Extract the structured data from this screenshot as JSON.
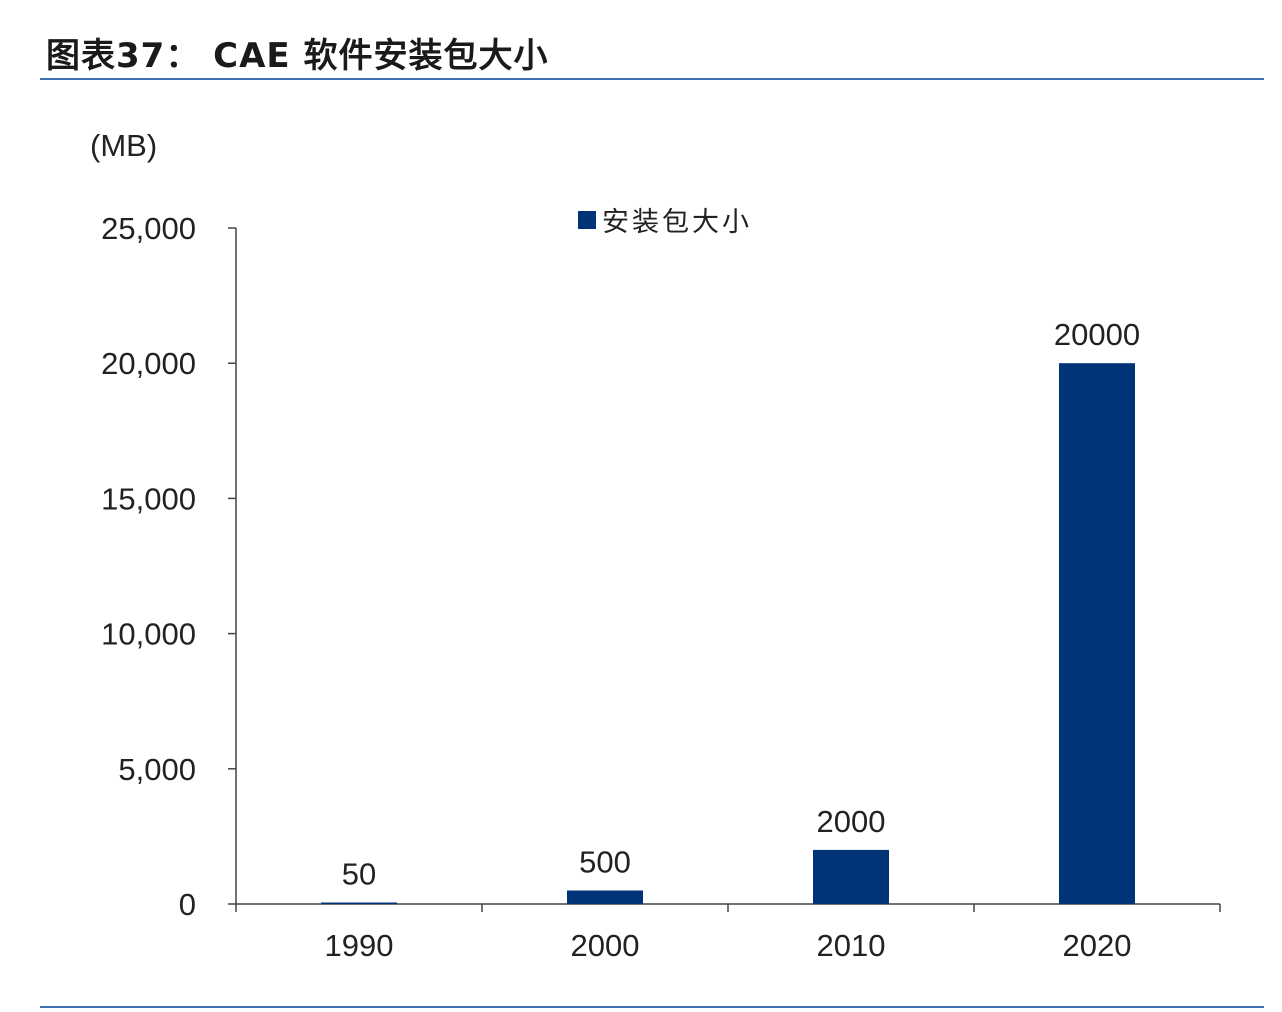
{
  "figure": {
    "title": "图表37：  CAE 软件安装包大小"
  },
  "chart_data": {
    "type": "bar",
    "ylabel": "(MB)",
    "categories": [
      "1990",
      "2000",
      "2010",
      "2020"
    ],
    "series": [
      {
        "name": "安装包大小",
        "values": [
          50,
          500,
          2000,
          20000
        ],
        "data_labels": [
          "50",
          "500",
          "2000",
          "20000"
        ]
      }
    ],
    "ylim": [
      0,
      25000
    ],
    "yticks": [
      0,
      5000,
      10000,
      15000,
      20000,
      25000
    ],
    "ytick_labels": [
      "0",
      "5,000",
      "10,000",
      "15,000",
      "20,000",
      "25,000"
    ],
    "grid": false,
    "legend": "top-center",
    "bar_color": "#003476"
  }
}
